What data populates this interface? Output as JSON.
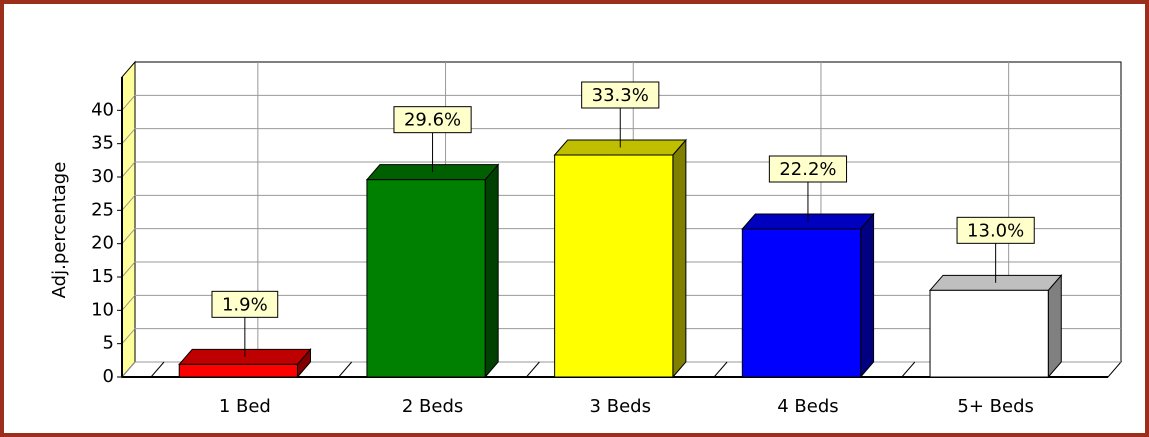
{
  "chart_data": {
    "type": "bar3d",
    "y_label": "Adj.percentage",
    "categories": [
      "1 Bed",
      "2 Beds",
      "3 Beds",
      "4 Beds",
      "5+ Beds"
    ],
    "values": [
      1.9,
      29.6,
      33.3,
      22.2,
      13.0
    ],
    "value_labels": [
      "1.9%",
      "29.6%",
      "33.3%",
      "22.2%",
      "13.0%"
    ],
    "colors": [
      "#ff0000",
      "#008000",
      "#ffff00",
      "#0000ff",
      "#ffffff"
    ],
    "ylim": [
      0,
      45
    ],
    "yticks": [
      0,
      5,
      10,
      15,
      20,
      25,
      30,
      35,
      40
    ],
    "grid": true
  }
}
